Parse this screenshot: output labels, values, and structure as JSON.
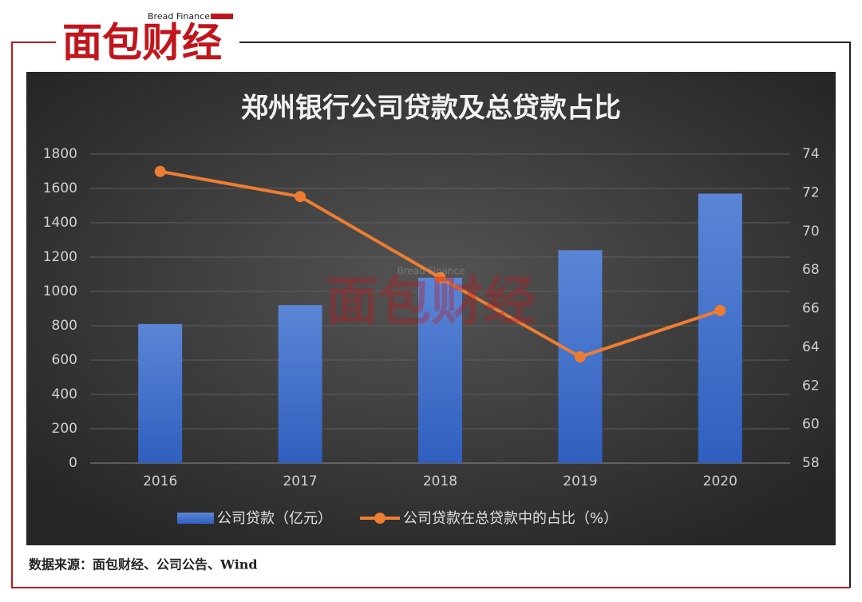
{
  "logo": {
    "english": "Bread Finance",
    "brand": "面包财经"
  },
  "chart_data": {
    "type": "combo",
    "title": "郑州银行公司贷款及总贷款占比",
    "categories": [
      "2016",
      "2017",
      "2018",
      "2019",
      "2020"
    ],
    "series": [
      {
        "name": "公司贷款（亿元）",
        "type": "bar",
        "color": "#4472c4",
        "values": [
          810,
          920,
          1080,
          1240,
          1570
        ]
      },
      {
        "name": "公司贷款在总贷款中的占比（%）",
        "type": "line",
        "axis": "y2",
        "color": "#ed7d31",
        "values": [
          73.1,
          71.8,
          67.6,
          63.5,
          65.9
        ]
      }
    ],
    "ylim": [
      0,
      1800
    ],
    "yticks": [
      0,
      200,
      400,
      600,
      800,
      1000,
      1200,
      1400,
      1600,
      1800
    ],
    "y2lim": [
      58,
      74
    ],
    "y2ticks": [
      58,
      60,
      62,
      64,
      66,
      68,
      70,
      72,
      74
    ],
    "grid": true,
    "legend": "bottom"
  },
  "source": "数据来源：面包财经、公司公告、Wind"
}
